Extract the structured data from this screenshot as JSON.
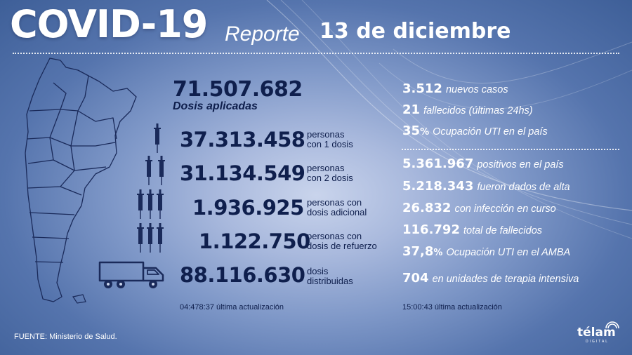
{
  "title": {
    "main": "COVID-19",
    "report": "Reporte",
    "date": "13 de diciembre"
  },
  "vaccination": {
    "total_doses": {
      "value": "71.507.682",
      "label": "Dosis aplicadas"
    },
    "rows": [
      {
        "value": "37.313.458",
        "label1": "personas",
        "label2": "con 1 dosis",
        "icon": "one-syringe-icon"
      },
      {
        "value": "31.134.549",
        "label1": "personas",
        "label2": "con 2 dosis",
        "icon": "two-syringes-icon"
      },
      {
        "value": "1.936.925",
        "label1": "personas con",
        "label2": "dosis adicional",
        "icon": "three-syringes-icon"
      },
      {
        "value": "1.122.750",
        "label1": "personas con",
        "label2": "dosis de refuerzo",
        "icon": "three-syringes-icon"
      },
      {
        "value": "88.116.630",
        "label1": "dosis",
        "label2": "distribuidas",
        "icon": "truck-icon"
      }
    ],
    "update": {
      "time": "04:478:37",
      "text": "última actualización"
    }
  },
  "cases_top": [
    {
      "number": "3.512",
      "suffix": "",
      "text": "nuevos casos"
    },
    {
      "number": "21",
      "suffix": "",
      "text": "fallecidos (últimas 24hs)"
    },
    {
      "number": "35",
      "suffix": "%",
      "text": "Ocupación UTI en el país"
    }
  ],
  "cases_bottom": [
    {
      "number": "5.361.967",
      "suffix": "",
      "text": "positivos en el país"
    },
    {
      "number": "5.218.343",
      "suffix": "",
      "text": "fueron dados de alta"
    },
    {
      "number": "26.832",
      "suffix": "",
      "text": "con infección en curso"
    },
    {
      "number": "116.792",
      "suffix": "",
      "text": "total de fallecidos"
    },
    {
      "number": "37,8",
      "suffix": "%",
      "text": "Ocupación UTI en el AMBA"
    },
    {
      "number": "704",
      "suffix": "",
      "text": "en unidades de terapia intensiva"
    }
  ],
  "cases_update": {
    "time": "15:00:43",
    "text": "última actualización"
  },
  "source": "FUENTE: Ministerio de Salud.",
  "logo": {
    "name": "télam",
    "sub": "DIGITAL"
  },
  "colors": {
    "text_dark": "#0f1f4d",
    "text_light": "#ffffff",
    "background": "#5574ad"
  }
}
